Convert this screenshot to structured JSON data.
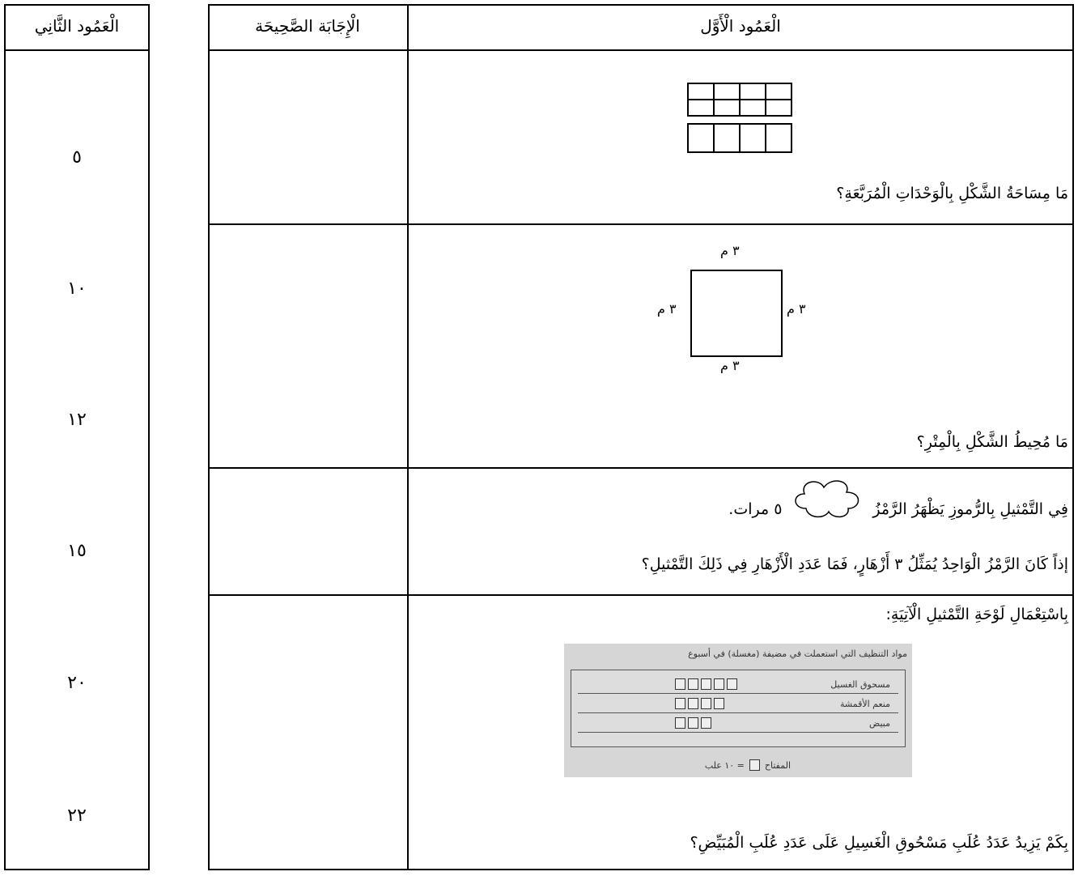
{
  "column_two": {
    "header": "الْعَمُود الثَّانِي",
    "values": [
      "٥",
      "١٠",
      "١٢",
      "١٥",
      "٢٠",
      "٢٢"
    ]
  },
  "table": {
    "headers": [
      "الْإِجَابَة الصَّحِيحَة",
      "الْعَمُود الْأَوَّل"
    ],
    "rows": [
      {
        "question": "مَا مِسَاحَةُ الشَّكْلِ بِالْوَحْدَاتِ الْمُرَبَّعَةِ؟"
      },
      {
        "labels": [
          "٣ م",
          "٣ م",
          "٣ م",
          "٣ م"
        ],
        "question": "مَا مُحِيطُ الشَّكْلِ بِالْمِتْرِ؟"
      },
      {
        "line1_start": "فِي التَّمْثيلِ بِالرُّموزِ يَظْهَرُ الرَّمْزُ",
        "line1_end": "٥ مرات.",
        "line2": "إذاً كَانَ الرَّمْزُ الْوَاحِدُ يُمَثِّلُ ٣ أَزْهَارٍ، فَمَا عَدَدِ الْأَزْهَارِ فِي ذَلِكَ التَّمْثيلِ؟"
      },
      {
        "intro": "بِاسْتِعْمَالِ لَوْحَةِ التَّمْثيلِ الْآتِيَةِ:",
        "pictograph": {
          "title": "مواد التنظيف التي استعملت في مضيفة (مغسلة) في أسبوع",
          "rows": [
            {
              "label": "مسحوق الغسيل",
              "count": 5
            },
            {
              "label": "منعم الأقمشة",
              "count": 4
            },
            {
              "label": "مبيض",
              "count": 3
            }
          ],
          "key_label": "المفتاح",
          "key_value": "= ١٠ علب"
        },
        "question": "بِكَمْ يَزِيدُ عَدَدُ عُلَبِ مَسْحُوقِ الْغَسِيلِ عَلَى عَدَدِ عُلَبِ الْمُبَيِّضِ؟"
      }
    ]
  }
}
